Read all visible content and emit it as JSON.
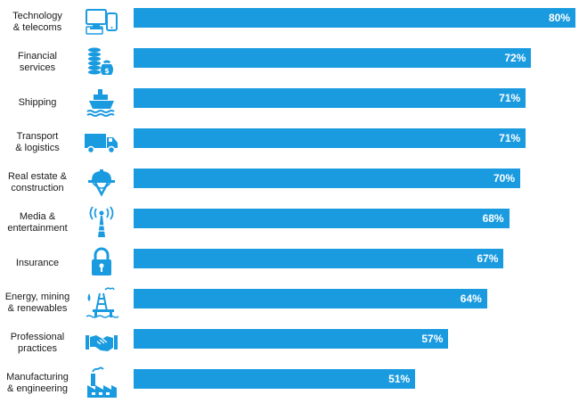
{
  "chart_data": {
    "type": "bar",
    "orientation": "horizontal",
    "categories": [
      "Technology\n& telecoms",
      "Financial\nservices",
      "Shipping",
      "Transport\n& logistics",
      "Real estate &\nconstruction",
      "Media &\nentertainment",
      "Insurance",
      "Energy, mining\n& renewables",
      "Professional\npractices",
      "Manufacturing\n& engineering"
    ],
    "values": [
      80,
      72,
      71,
      71,
      70,
      68,
      67,
      64,
      57,
      51
    ],
    "value_labels": [
      "80%",
      "72%",
      "71%",
      "71%",
      "70%",
      "68%",
      "67%",
      "64%",
      "57%",
      "51%"
    ],
    "icons": [
      "devices-icon",
      "coins-money-icon",
      "ship-icon",
      "truck-icon",
      "construction-helmet-icon",
      "broadcast-tower-icon",
      "padlock-icon",
      "oil-rig-icon",
      "handshake-icon",
      "factory-icon"
    ],
    "xlim": [
      0,
      80
    ],
    "grid": false,
    "legend": "none",
    "colors": {
      "bar": "#1a9be0",
      "icon": "#1a9be0",
      "value_text": "#ffffff",
      "label_text": "#1a1a1a"
    }
  }
}
